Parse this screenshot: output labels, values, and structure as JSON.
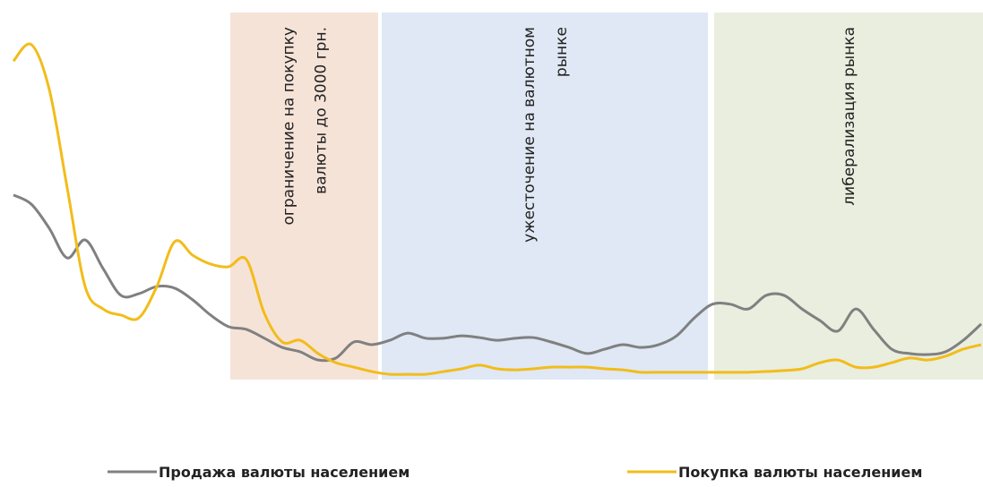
{
  "chart_data": {
    "type": "line",
    "xlim": [
      0,
      54
    ],
    "ylim": [
      0,
      100
    ],
    "x": [
      0,
      1,
      2,
      3,
      4,
      5,
      6,
      7,
      8,
      9,
      10,
      11,
      12,
      13,
      14,
      15,
      16,
      17,
      18,
      19,
      20,
      21,
      22,
      23,
      24,
      25,
      26,
      27,
      28,
      29,
      30,
      31,
      32,
      33,
      34,
      35,
      36,
      37,
      38,
      39,
      40,
      41,
      42,
      43,
      44,
      45,
      46,
      47,
      48,
      49,
      50,
      51,
      52,
      53,
      54
    ],
    "regions": [
      {
        "from": 12.1,
        "to": 20.35,
        "color": "#f6e3d8",
        "lines": [
          "ограничение  на покупку",
          "валюты до 3000 грн."
        ]
      },
      {
        "from": 20.55,
        "to": 38.75,
        "color": "#dfe8f4",
        "lines": [
          "ужесточение  на валютном",
          "рынке"
        ]
      },
      {
        "from": 39.1,
        "to": 54.1,
        "color": "#e9eedf",
        "lines": [
          "либерализация рынка"
        ]
      }
    ],
    "series": [
      {
        "name": "Продажа валюты населением",
        "color": "#808080",
        "values": [
          53.2,
          50.5,
          43.4,
          34.7,
          40,
          31.6,
          23.7,
          24.2,
          26.3,
          25.8,
          22.4,
          17.9,
          14.5,
          13.7,
          11.1,
          8.4,
          7.1,
          4.7,
          5.3,
          10,
          9.2,
          10.5,
          12.6,
          11.1,
          11.1,
          11.8,
          11.3,
          10.5,
          11.1,
          11.3,
          10,
          8.4,
          6.6,
          7.9,
          9.2,
          8.4,
          9.2,
          11.8,
          17.1,
          21.1,
          21.1,
          19.7,
          23.7,
          23.7,
          19.7,
          16.3,
          13.2,
          19.7,
          13.7,
          7.9,
          6.6,
          6.3,
          7.1,
          10.5,
          15.3
        ]
      },
      {
        "name": "Покупка валюты населением",
        "color": "#f2bc1a",
        "values": [
          92.6,
          97.4,
          84.2,
          55.3,
          26.3,
          19.7,
          17.9,
          17.1,
          26.3,
          39.5,
          35.5,
          32.9,
          32.1,
          34.2,
          18.4,
          10,
          10.5,
          6.6,
          3.9,
          2.6,
          1.3,
          0.5,
          0.5,
          0.5,
          1.3,
          2.1,
          3.2,
          2.1,
          1.8,
          2.1,
          2.6,
          2.6,
          2.6,
          2.1,
          1.8,
          1.1,
          1.1,
          1.1,
          1.1,
          1.1,
          1.1,
          1.1,
          1.3,
          1.6,
          2.1,
          3.9,
          4.7,
          2.6,
          2.6,
          3.9,
          5.3,
          4.7,
          5.8,
          7.9,
          9.2
        ]
      }
    ]
  }
}
